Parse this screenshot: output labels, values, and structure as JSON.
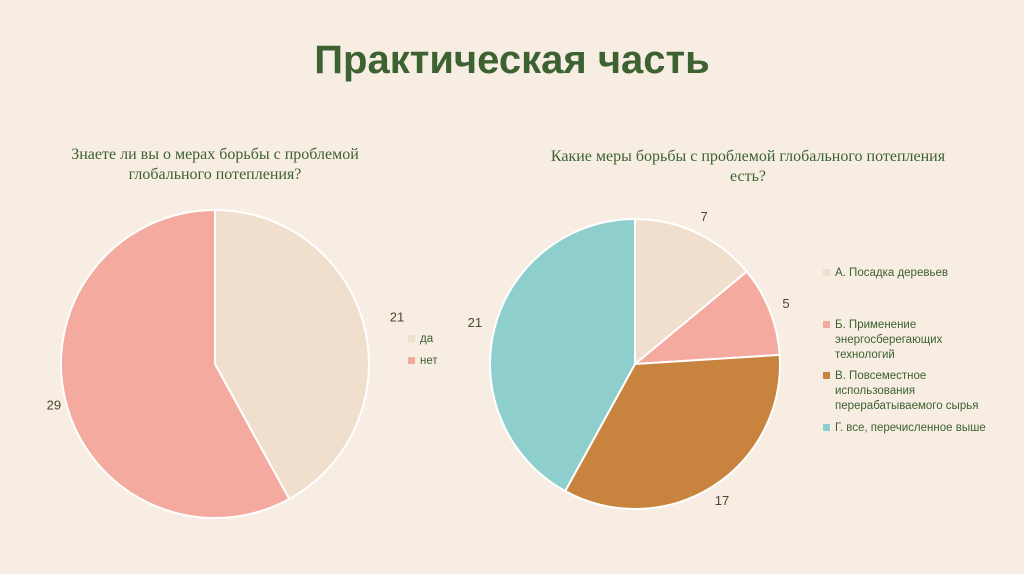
{
  "slide": {
    "title": "Практическая часть"
  },
  "chart_data": [
    {
      "type": "pie",
      "title_lines": [
        "Знаете ли вы о мерах борьбы с проблемой",
        "глобального потепления?"
      ],
      "categories": [
        "да",
        "нет"
      ],
      "values": [
        21,
        29
      ],
      "colors": [
        "#f1dfcd",
        "#f4aa9f"
      ],
      "legend": "right"
    },
    {
      "type": "pie",
      "title_lines": [
        "Какие меры борьбы с проблемой глобального потепления",
        "есть?"
      ],
      "categories": [
        "А. Посадка деревьев",
        "Б. Применение\nэнергосберегающих\nтехнологий",
        "В. Повсеместное\nиспользования\nперерабатываемого сырья",
        "Г. все, перечисленное выше"
      ],
      "values": [
        7,
        5,
        17,
        21
      ],
      "colors": [
        "#f1dfcd",
        "#f4aa9f",
        "#c8843e",
        "#8ecfce"
      ],
      "legend": "right"
    }
  ]
}
